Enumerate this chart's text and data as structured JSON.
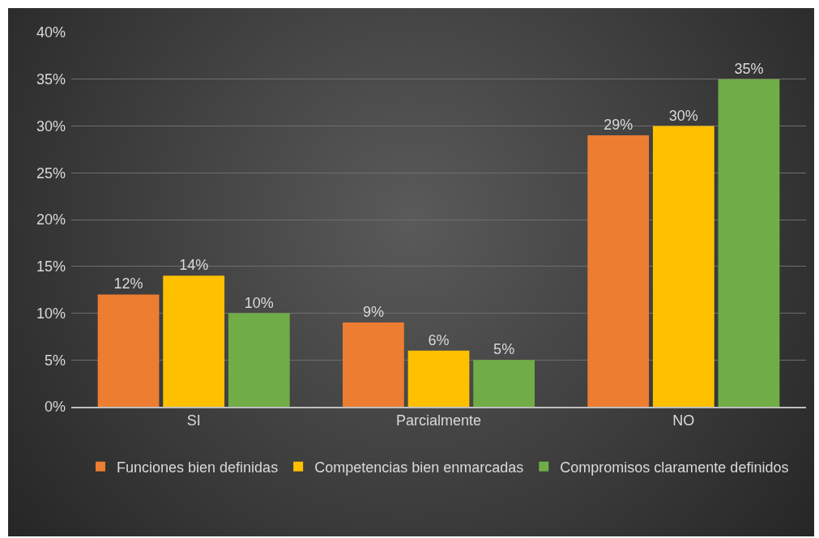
{
  "chart_data": {
    "type": "bar",
    "categories": [
      "SI",
      "Parcialmente",
      "NO"
    ],
    "series": [
      {
        "name": "Funciones bien definidas",
        "color": "#ed7d31",
        "values": [
          12,
          9,
          29
        ],
        "value_labels": [
          "12%",
          "9%",
          "29%"
        ]
      },
      {
        "name": "Competencias bien enmarcadas",
        "color": "#ffc000",
        "values": [
          14,
          6,
          30
        ],
        "value_labels": [
          "14%",
          "6%",
          "30%"
        ]
      },
      {
        "name": "Compromisos claramente definidos",
        "color": "#70ad47",
        "values": [
          10,
          5,
          35
        ],
        "value_labels": [
          "10%",
          "5%",
          "35%"
        ]
      }
    ],
    "ylim": [
      0,
      40
    ],
    "yticks": [
      {
        "value": 0,
        "label": "0%"
      },
      {
        "value": 5,
        "label": "5%"
      },
      {
        "value": 10,
        "label": "10%"
      },
      {
        "value": 15,
        "label": "15%"
      },
      {
        "value": 20,
        "label": "20%"
      },
      {
        "value": 25,
        "label": "25%"
      },
      {
        "value": 30,
        "label": "30%"
      },
      {
        "value": 35,
        "label": "35%"
      },
      {
        "value": 40,
        "label": "40%"
      }
    ],
    "grid": "y",
    "legend": "bottom"
  }
}
